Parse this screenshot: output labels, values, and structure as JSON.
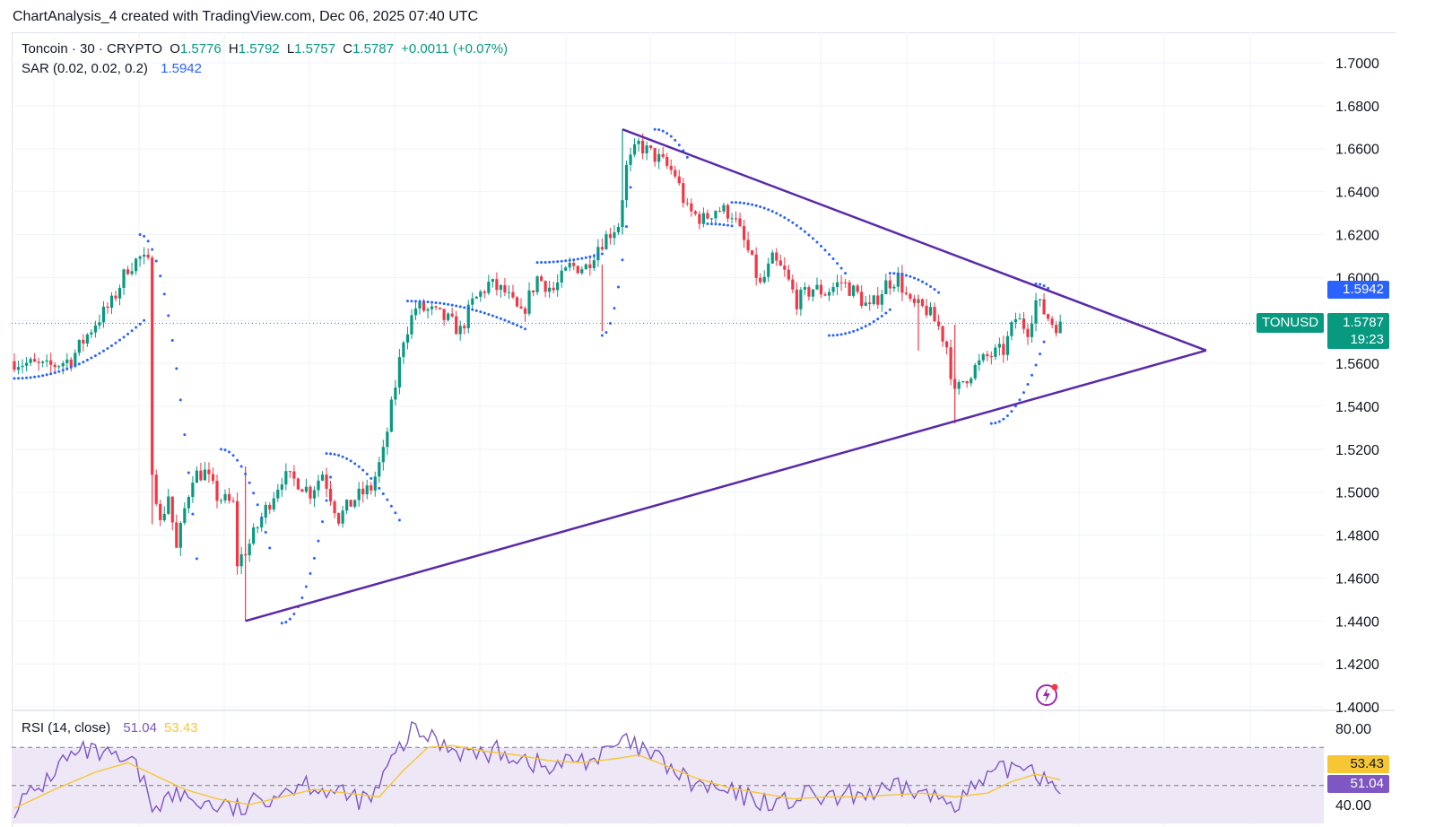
{
  "attribution": "ChartAnalysis_4 created with TradingView.com, Dec 06, 2025 07:40 UTC",
  "legend": {
    "symbol": "Toncoin · 30 · CRYPTO",
    "o_label": "O",
    "o": "1.5776",
    "h_label": "H",
    "h": "1.5792",
    "l_label": "L",
    "l": "1.5757",
    "c_label": "C",
    "c": "1.5787",
    "change": "+0.0011 (+0.07%)",
    "sar_label": "SAR (0.02, 0.02, 0.2)",
    "sar_value": "1.5942",
    "rsi_label": "RSI (14, close)",
    "rsi_value": "51.04",
    "rsi_ma_value": "53.43"
  },
  "tags": {
    "sar_price": "1.5942",
    "symbol": "TONUSD",
    "last_price": "1.5787",
    "countdown": "19:23",
    "rsi_ma": "53.43",
    "rsi": "51.04"
  },
  "colors": {
    "up": "#089981",
    "down": "#f23645",
    "sar": "#2962ff",
    "trendline": "#5b2aa8",
    "rsi": "#7e57c2",
    "rsi_ma": "#f7c634",
    "rsi_band": "#ede7f6",
    "grid": "#f0f3fa"
  },
  "chart_data": {
    "type": "candlestick",
    "price_axis": {
      "ticks": [
        "1.7000",
        "1.6800",
        "1.6600",
        "1.6400",
        "1.6200",
        "1.6000",
        "1.5800",
        "1.5600",
        "1.5400",
        "1.5200",
        "1.5000",
        "1.4800",
        "1.4600",
        "1.4400",
        "1.4200",
        "1.4000"
      ],
      "range": [
        1.4,
        1.71
      ]
    },
    "rsi_axis": {
      "ticks": [
        "80.00",
        "40.00"
      ],
      "range": [
        36,
        84
      ],
      "bands": [
        70,
        50,
        30
      ]
    },
    "price_keyframes": [
      [
        0,
        1.561
      ],
      [
        8,
        1.558
      ],
      [
        14,
        1.562
      ],
      [
        20,
        1.579
      ],
      [
        24,
        1.588
      ],
      [
        28,
        1.605
      ],
      [
        31,
        1.609
      ],
      [
        33,
        1.606
      ],
      [
        34,
        1.512
      ],
      [
        36,
        1.485
      ],
      [
        38,
        1.499
      ],
      [
        40,
        1.473
      ],
      [
        42,
        1.492
      ],
      [
        44,
        1.508
      ],
      [
        47,
        1.509
      ],
      [
        50,
        1.498
      ],
      [
        54,
        1.494
      ],
      [
        55,
        1.467
      ],
      [
        58,
        1.476
      ],
      [
        62,
        1.492
      ],
      [
        66,
        1.507
      ],
      [
        70,
        1.505
      ],
      [
        73,
        1.5
      ],
      [
        76,
        1.509
      ],
      [
        80,
        1.488
      ],
      [
        84,
        1.497
      ],
      [
        88,
        1.502
      ],
      [
        91,
        1.518
      ],
      [
        94,
        1.55
      ],
      [
        96,
        1.572
      ],
      [
        99,
        1.586
      ],
      [
        103,
        1.584
      ],
      [
        107,
        1.58
      ],
      [
        110,
        1.575
      ],
      [
        113,
        1.588
      ],
      [
        117,
        1.597
      ],
      [
        121,
        1.593
      ],
      [
        125,
        1.582
      ],
      [
        129,
        1.6
      ],
      [
        133,
        1.594
      ],
      [
        137,
        1.605
      ],
      [
        141,
        1.605
      ],
      [
        144,
        1.615
      ],
      [
        149,
        1.625
      ],
      [
        151,
        1.651
      ],
      [
        154,
        1.662
      ],
      [
        156,
        1.659
      ],
      [
        159,
        1.655
      ],
      [
        163,
        1.648
      ],
      [
        166,
        1.631
      ],
      [
        170,
        1.627
      ],
      [
        173,
        1.632
      ],
      [
        177,
        1.63
      ],
      [
        181,
        1.612
      ],
      [
        184,
        1.596
      ],
      [
        187,
        1.608
      ],
      [
        190,
        1.602
      ],
      [
        193,
        1.589
      ],
      [
        197,
        1.595
      ],
      [
        200,
        1.593
      ],
      [
        204,
        1.598
      ],
      [
        208,
        1.592
      ],
      [
        211,
        1.585
      ],
      [
        215,
        1.597
      ],
      [
        218,
        1.6
      ],
      [
        221,
        1.587
      ],
      [
        225,
        1.585
      ],
      [
        228,
        1.577
      ],
      [
        230,
        1.568
      ],
      [
        232,
        1.545
      ],
      [
        234,
        1.552
      ],
      [
        237,
        1.558
      ],
      [
        240,
        1.563
      ],
      [
        244,
        1.566
      ],
      [
        247,
        1.581
      ],
      [
        250,
        1.576
      ],
      [
        252,
        1.589
      ],
      [
        254,
        1.584
      ],
      [
        256,
        1.579
      ],
      [
        258,
        1.577
      ]
    ],
    "sar_segments": [
      {
        "from": [
          0,
          1.553
        ],
        "to": [
          32,
          1.58
        ]
      },
      {
        "from": [
          31,
          1.62
        ],
        "to": [
          45,
          1.469
        ]
      },
      {
        "from": [
          51,
          1.52
        ],
        "to": [
          63,
          1.474
        ]
      },
      {
        "from": [
          66,
          1.439
        ],
        "to": [
          78,
          1.507
        ]
      },
      {
        "from": [
          77,
          1.518
        ],
        "to": [
          95,
          1.487
        ]
      },
      {
        "from": [
          97,
          1.589
        ],
        "to": [
          126,
          1.576
        ]
      },
      {
        "from": [
          129,
          1.607
        ],
        "to": [
          145,
          1.611
        ]
      },
      {
        "from": [
          145,
          1.573
        ],
        "to": [
          152,
          1.642
        ]
      },
      {
        "from": [
          158,
          1.669
        ],
        "to": [
          166,
          1.656
        ]
      },
      {
        "from": [
          171,
          1.625
        ],
        "to": [
          177,
          1.624
        ]
      },
      {
        "from": [
          177,
          1.635
        ],
        "to": [
          205,
          1.602
        ]
      },
      {
        "from": [
          201,
          1.573
        ],
        "to": [
          216,
          1.585
        ]
      },
      {
        "from": [
          216,
          1.602
        ],
        "to": [
          228,
          1.593
        ]
      },
      {
        "from": [
          241,
          1.532
        ],
        "to": [
          254,
          1.57
        ]
      },
      {
        "from": [
          252,
          1.597
        ],
        "to": [
          255,
          1.595
        ]
      }
    ],
    "trendlines": [
      {
        "from": [
          57,
          1.44
        ],
        "to": [
          294,
          1.566
        ]
      },
      {
        "from": [
          150,
          1.669
        ],
        "to": [
          294,
          1.566
        ]
      }
    ],
    "rsi_keyframes": [
      [
        0,
        39
      ],
      [
        6,
        48
      ],
      [
        12,
        63
      ],
      [
        18,
        68
      ],
      [
        24,
        64
      ],
      [
        30,
        60
      ],
      [
        34,
        40
      ],
      [
        40,
        45
      ],
      [
        48,
        40
      ],
      [
        56,
        37
      ],
      [
        64,
        46
      ],
      [
        72,
        52
      ],
      [
        80,
        45
      ],
      [
        88,
        42
      ],
      [
        94,
        66
      ],
      [
        98,
        78
      ],
      [
        102,
        76
      ],
      [
        108,
        70
      ],
      [
        114,
        66
      ],
      [
        120,
        68
      ],
      [
        126,
        64
      ],
      [
        132,
        58
      ],
      [
        138,
        64
      ],
      [
        144,
        64
      ],
      [
        150,
        73
      ],
      [
        155,
        68
      ],
      [
        160,
        62
      ],
      [
        166,
        52
      ],
      [
        172,
        48
      ],
      [
        178,
        45
      ],
      [
        184,
        42
      ],
      [
        190,
        41
      ],
      [
        196,
        45
      ],
      [
        202,
        42
      ],
      [
        208,
        46
      ],
      [
        214,
        46
      ],
      [
        220,
        49
      ],
      [
        226,
        44
      ],
      [
        232,
        42
      ],
      [
        238,
        50
      ],
      [
        244,
        58
      ],
      [
        250,
        62
      ],
      [
        254,
        54
      ],
      [
        258,
        51
      ]
    ],
    "rsi_ma_keyframes": [
      [
        0,
        38
      ],
      [
        10,
        48
      ],
      [
        20,
        57
      ],
      [
        28,
        62
      ],
      [
        34,
        56
      ],
      [
        42,
        48
      ],
      [
        50,
        43
      ],
      [
        58,
        40
      ],
      [
        66,
        44
      ],
      [
        74,
        48
      ],
      [
        82,
        46
      ],
      [
        90,
        44
      ],
      [
        96,
        58
      ],
      [
        102,
        70
      ],
      [
        108,
        71
      ],
      [
        116,
        68
      ],
      [
        124,
        66
      ],
      [
        132,
        63
      ],
      [
        140,
        62
      ],
      [
        148,
        64
      ],
      [
        154,
        66
      ],
      [
        160,
        61
      ],
      [
        168,
        54
      ],
      [
        176,
        49
      ],
      [
        184,
        46
      ],
      [
        192,
        43
      ],
      [
        200,
        44
      ],
      [
        208,
        44
      ],
      [
        216,
        45
      ],
      [
        224,
        46
      ],
      [
        232,
        44
      ],
      [
        240,
        46
      ],
      [
        246,
        52
      ],
      [
        252,
        56
      ],
      [
        258,
        53
      ]
    ]
  }
}
